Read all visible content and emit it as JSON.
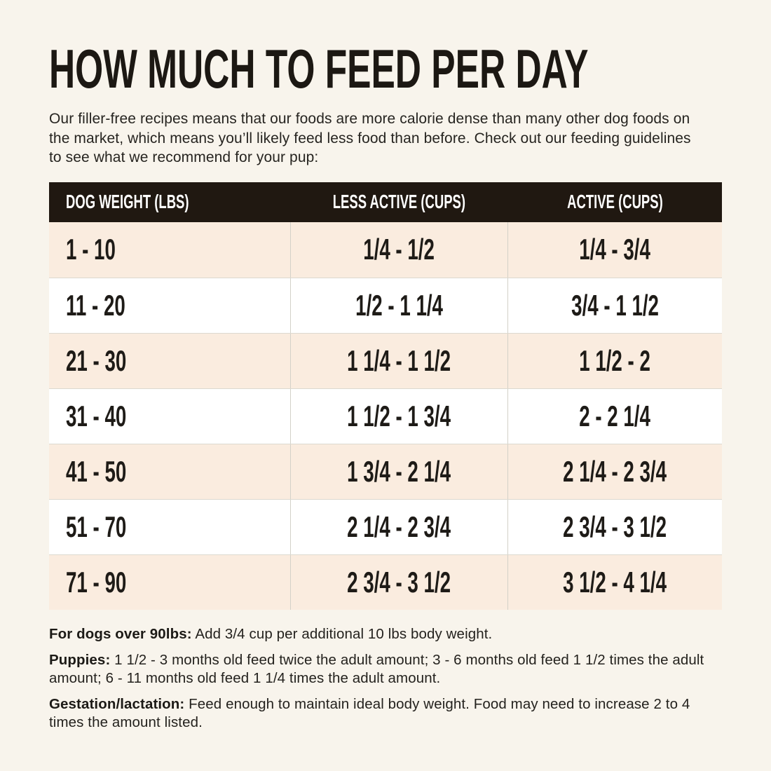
{
  "page": {
    "title": "HOW MUCH TO FEED PER DAY",
    "intro": "Our filler-free recipes means that our foods are more calorie dense than many other dog foods on the market, which means you’ll likely feed less food than before. Check out our feeding guidelines to see what we recommend for your pup:"
  },
  "colors": {
    "page_background": "#f8f4ec",
    "header_background": "#201811",
    "header_text": "#ffffff",
    "row_cream": "#faecdf",
    "row_white": "#ffffff",
    "text": "#1e1b17"
  },
  "chart_data": {
    "type": "table",
    "title": "HOW MUCH TO FEED PER DAY",
    "columns": [
      "DOG WEIGHT (LBS)",
      "LESS ACTIVE (CUPS)",
      "ACTIVE (CUPS)"
    ],
    "rows": [
      [
        "1 - 10",
        "1/4 - 1/2",
        "1/4 - 3/4"
      ],
      [
        "11 - 20",
        "1/2 - 1 1/4",
        "3/4 - 1 1/2"
      ],
      [
        "21 - 30",
        "1 1/4 - 1 1/2",
        "1 1/2 - 2"
      ],
      [
        "31 - 40",
        "1 1/2 - 1 3/4",
        "2 - 2 1/4"
      ],
      [
        "41 - 50",
        "1 3/4 - 2 1/4",
        "2 1/4 - 2 3/4"
      ],
      [
        "51 - 70",
        "2 1/4 - 2 3/4",
        "2 3/4 - 3 1/2"
      ],
      [
        "71 - 90",
        "2 3/4 - 3 1/2",
        "3 1/2 - 4 1/4"
      ]
    ]
  },
  "notes": [
    {
      "label": "For dogs over 90lbs:",
      "text": "Add 3/4 cup per additional 10 lbs body weight."
    },
    {
      "label": "Puppies:",
      "text": "1 1/2 - 3 months old feed twice the adult amount; 3 - 6 months old feed 1 1/2 times the adult amount; 6 - 11 months old feed 1 1/4 times the adult amount."
    },
    {
      "label": "Gestation/lactation:",
      "text": "Feed enough to maintain ideal body weight. Food may need to increase 2 to 4 times the amount listed."
    }
  ]
}
